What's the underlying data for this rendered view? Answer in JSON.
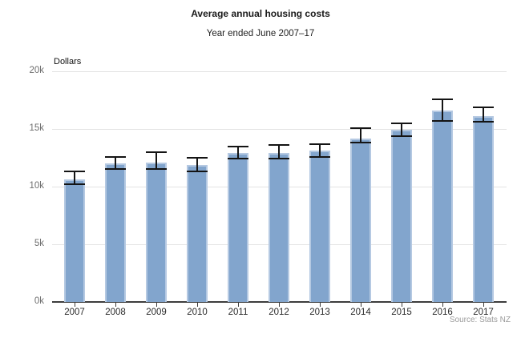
{
  "header": {
    "title": "Average annual housing costs",
    "subtitle": "Year ended June 2007–17"
  },
  "axis": {
    "unit_label": "Dollars"
  },
  "footer": {
    "source": "Source: Stats NZ"
  },
  "colors": {
    "bar_fill": "#82a5cd",
    "bar_border": "#b5c9e2",
    "error_bar": "#141414",
    "gridline": "#e3e3e3",
    "axis_line": "#3d3d3d",
    "ytick_text": "#6e6e6e",
    "xtick_text": "#2b2b2b",
    "source_text": "#9b9b9b"
  },
  "chart_data": {
    "type": "bar",
    "title": "Average annual housing costs",
    "subtitle": "Year ended June 2007–17",
    "xlabel": "",
    "ylabel": "Dollars",
    "categories": [
      "2007",
      "2008",
      "2009",
      "2010",
      "2011",
      "2012",
      "2013",
      "2014",
      "2015",
      "2016",
      "2017"
    ],
    "values": [
      10600,
      12000,
      12100,
      11900,
      12900,
      12900,
      13100,
      14200,
      14900,
      16600,
      16100
    ],
    "error_low": [
      10200,
      11500,
      11500,
      11300,
      12400,
      12400,
      12600,
      13800,
      14400,
      15700,
      15600
    ],
    "error_high": [
      11300,
      12600,
      13000,
      12500,
      13500,
      13600,
      13700,
      15100,
      15500,
      17600,
      16900
    ],
    "ylim": [
      0,
      20000
    ],
    "yticks": [
      0,
      5000,
      10000,
      15000,
      20000
    ],
    "ytick_labels": [
      "0k",
      "5k",
      "10k",
      "15k",
      "20k"
    ],
    "grid": "horizontal",
    "legend": "none",
    "source": "Source: Stats NZ"
  }
}
